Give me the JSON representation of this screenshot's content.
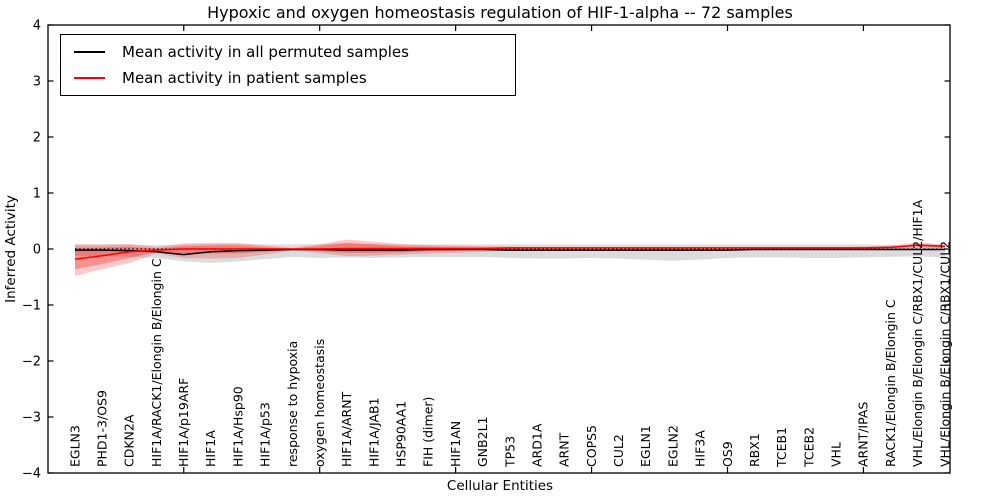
{
  "chart_data": {
    "type": "line",
    "title": "Hypoxic and oxygen homeostasis regulation of HIF-1-alpha -- 72 samples",
    "xlabel": "Cellular Entities",
    "ylabel": "Inferred Activity",
    "ylim": [
      -4,
      4
    ],
    "y_ticks": [
      -4,
      -3,
      -2,
      -1,
      0,
      1,
      2,
      3,
      4
    ],
    "x_tick_indices": [
      4,
      9,
      14,
      19,
      24,
      29
    ],
    "grid": false,
    "zero_reference_line": 0,
    "legend_position": "upper left",
    "categories": [
      "EGLN3",
      "PHD1-3/OS9",
      "CDKN2A",
      "HIF1A/RACK1/Elongin B/Elongin C",
      "HIF1A/p19ARF",
      "HIF1A",
      "HIF1A/Hsp90",
      "HIF1A/p53",
      "response to hypoxia",
      "oxygen homeostasis",
      "HIF1A/ARNT",
      "HIF1A/JAB1",
      "HSP90AA1",
      "FIH (dimer)",
      "HIF1AN",
      "GNB2L1",
      "TP53",
      "ARD1A",
      "ARNT",
      "COPS5",
      "CUL2",
      "EGLN1",
      "EGLN2",
      "HIF3A",
      "OS9",
      "RBX1",
      "TCEB1",
      "TCEB2",
      "VHL",
      "ARNT/IPAS",
      "RACK1/Elongin B/Elongin C",
      "VHL/Elongin B/Elongin C/RBX1/CUL2/HIF1A",
      "VHL/Elongin B/Elongin C/RBX1/CUL2"
    ],
    "legend": [
      {
        "label": "Mean activity in all permuted samples",
        "color": "#000000"
      },
      {
        "label": "Mean activity in patient samples",
        "color": "#ff0000"
      }
    ],
    "series": [
      {
        "name": "permuted-mean",
        "color": "#000000",
        "values": [
          -0.02,
          -0.02,
          -0.03,
          -0.05,
          -0.1,
          -0.05,
          -0.03,
          -0.02,
          -0.01,
          -0.01,
          -0.02,
          -0.02,
          -0.02,
          -0.01,
          -0.01,
          -0.01,
          -0.02,
          -0.02,
          -0.02,
          -0.02,
          -0.02,
          -0.02,
          -0.02,
          -0.02,
          -0.02,
          -0.01,
          -0.01,
          -0.01,
          -0.01,
          -0.01,
          -0.01,
          -0.01,
          -0.01
        ]
      },
      {
        "name": "patient-mean",
        "color": "#ff0000",
        "values": [
          -0.18,
          -0.12,
          -0.05,
          -0.02,
          0.0,
          0.0,
          0.0,
          0.0,
          0.0,
          0.0,
          0.01,
          0.01,
          0.01,
          0.01,
          0.01,
          0.01,
          0.02,
          0.02,
          0.02,
          0.02,
          0.02,
          0.02,
          0.02,
          0.02,
          0.02,
          0.02,
          0.02,
          0.02,
          0.02,
          0.02,
          0.03,
          0.07,
          0.05
        ]
      }
    ],
    "bands": [
      {
        "name": "permuted-range",
        "color": "rgba(128,128,128,0.28)",
        "hi": [
          0.08,
          0.08,
          0.08,
          0.07,
          0.08,
          0.09,
          0.09,
          0.08,
          0.08,
          0.09,
          0.1,
          0.09,
          0.08,
          0.08,
          0.08,
          0.08,
          0.08,
          0.08,
          0.08,
          0.08,
          0.08,
          0.08,
          0.08,
          0.08,
          0.08,
          0.08,
          0.08,
          0.08,
          0.08,
          0.08,
          0.07,
          0.06,
          0.06
        ],
        "lo": [
          -0.12,
          -0.13,
          -0.14,
          -0.16,
          -0.22,
          -0.25,
          -0.22,
          -0.18,
          -0.14,
          -0.16,
          -0.15,
          -0.16,
          -0.15,
          -0.14,
          -0.14,
          -0.14,
          -0.16,
          -0.17,
          -0.17,
          -0.16,
          -0.17,
          -0.19,
          -0.21,
          -0.19,
          -0.16,
          -0.15,
          -0.15,
          -0.16,
          -0.16,
          -0.15,
          -0.14,
          -0.13,
          -0.15
        ]
      },
      {
        "name": "patient-range-outer",
        "color": "rgba(255,30,30,0.25)",
        "hi": [
          0.08,
          0.08,
          0.09,
          0.03,
          0.1,
          0.11,
          0.11,
          0.06,
          0.02,
          0.08,
          0.17,
          0.13,
          0.09,
          0.07,
          0.06,
          0.05,
          0.04,
          0.03,
          0.03,
          0.03,
          0.03,
          0.03,
          0.03,
          0.03,
          0.03,
          0.03,
          0.03,
          0.03,
          0.03,
          0.04,
          0.06,
          0.12,
          0.08
        ],
        "lo": [
          -0.48,
          -0.36,
          -0.25,
          -0.08,
          -0.16,
          -0.17,
          -0.16,
          -0.1,
          -0.03,
          -0.07,
          -0.13,
          -0.12,
          -0.1,
          -0.08,
          -0.07,
          -0.05,
          -0.03,
          -0.02,
          -0.01,
          -0.01,
          -0.01,
          -0.01,
          -0.01,
          -0.01,
          -0.01,
          -0.01,
          -0.01,
          -0.01,
          -0.01,
          -0.01,
          0.0,
          0.01,
          0.02
        ]
      },
      {
        "name": "patient-range-inner",
        "color": "rgba(235,20,20,0.30)",
        "hi": [
          0.02,
          0.03,
          0.04,
          0.01,
          0.05,
          0.06,
          0.06,
          0.03,
          0.01,
          0.05,
          0.11,
          0.08,
          0.05,
          0.04,
          0.03,
          0.03,
          0.03,
          0.03,
          0.03,
          0.03,
          0.03,
          0.03,
          0.03,
          0.03,
          0.03,
          0.03,
          0.03,
          0.03,
          0.03,
          0.03,
          0.04,
          0.09,
          0.06
        ],
        "lo": [
          -0.36,
          -0.27,
          -0.16,
          -0.05,
          -0.08,
          -0.08,
          -0.08,
          -0.05,
          -0.01,
          -0.04,
          -0.07,
          -0.07,
          -0.06,
          -0.04,
          -0.03,
          -0.01,
          0.0,
          0.01,
          0.01,
          0.01,
          0.01,
          0.01,
          0.01,
          0.01,
          0.01,
          0.01,
          0.01,
          0.01,
          0.01,
          0.01,
          0.02,
          0.05,
          0.03
        ]
      }
    ]
  }
}
